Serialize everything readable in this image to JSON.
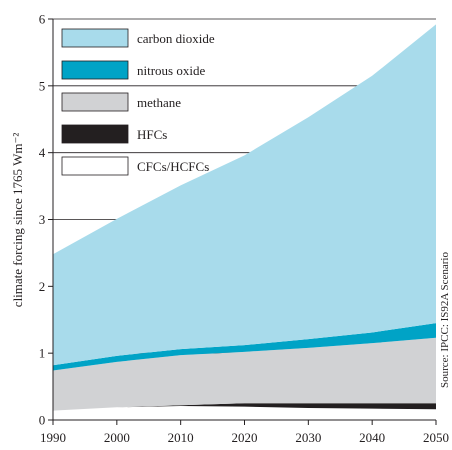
{
  "chart_data": {
    "type": "area",
    "stacked": true,
    "title": "",
    "xlabel": "",
    "ylabel": "climate forcing since 1765 Wm⁻²",
    "xlim": [
      1990,
      2050
    ],
    "ylim": [
      0,
      6
    ],
    "x_ticks": [
      "1990",
      "2000",
      "2010",
      "2020",
      "2030",
      "2040",
      "2050"
    ],
    "y_ticks": [
      "0",
      "1",
      "2",
      "3",
      "4",
      "5",
      "6"
    ],
    "grid": "horizontal",
    "legend_position": "top-left",
    "source": "Source: IPCC: IS92A Scenario",
    "series": [
      {
        "name": "CFCs/HCFCs",
        "color": "#ffffff",
        "x": [
          1990,
          2000,
          2010,
          2020,
          2030,
          2040,
          2050
        ],
        "y": [
          0.14,
          0.19,
          0.21,
          0.2,
          0.18,
          0.17,
          0.16
        ]
      },
      {
        "name": "HFCs",
        "color": "#231f20",
        "x": [
          1990,
          2000,
          2010,
          2020,
          2030,
          2040,
          2050
        ],
        "y": [
          0.0,
          0.0,
          0.01,
          0.05,
          0.07,
          0.08,
          0.09
        ]
      },
      {
        "name": "methane",
        "color": "#d1d2d4",
        "x": [
          1990,
          2000,
          2010,
          2020,
          2030,
          2040,
          2050
        ],
        "y": [
          0.6,
          0.68,
          0.75,
          0.77,
          0.83,
          0.9,
          0.98
        ]
      },
      {
        "name": "nitrous oxide",
        "color": "#00a3c6",
        "x": [
          1990,
          2000,
          2010,
          2020,
          2030,
          2040,
          2050
        ],
        "y": [
          0.08,
          0.09,
          0.09,
          0.1,
          0.13,
          0.16,
          0.22
        ]
      },
      {
        "name": "carbon dioxide",
        "color": "#a8dbeb",
        "x": [
          1990,
          2000,
          2010,
          2020,
          2030,
          2040,
          2050
        ],
        "y": [
          1.66,
          2.05,
          2.45,
          2.84,
          3.32,
          3.84,
          4.47
        ]
      }
    ],
    "legend_order": [
      "carbon dioxide",
      "nitrous oxide",
      "methane",
      "HFCs",
      "CFCs/HCFCs"
    ]
  }
}
